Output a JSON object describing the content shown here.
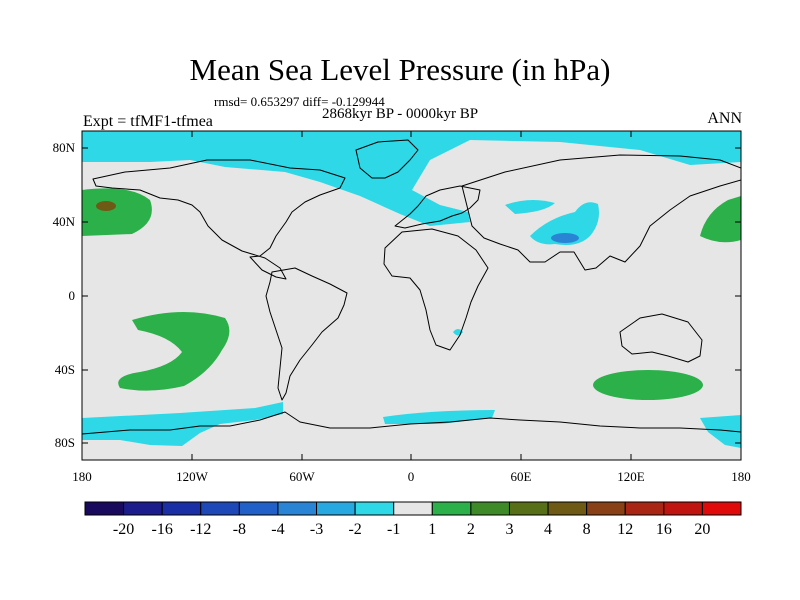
{
  "title": "Mean Sea Level Pressure (in hPa)",
  "stats_line": "rmsd= 0.653297 diff= -0.129944",
  "period": "2868kyr BP - 0000kyr BP",
  "experiment": "Expt = tfMF1-tfmea",
  "season": "ANN",
  "lat_ticks": [
    "80N",
    "40N",
    "0",
    "40S",
    "80S"
  ],
  "lon_ticks": [
    "180",
    "120W",
    "60W",
    "0",
    "60E",
    "120E",
    "180"
  ],
  "colorbar": {
    "labels": [
      "-20",
      "-16",
      "-12",
      "-8",
      "-4",
      "-3",
      "-2",
      "-1",
      "1",
      "2",
      "3",
      "4",
      "8",
      "12",
      "16",
      "20"
    ],
    "colors": [
      "#1a0a5e",
      "#1c1c8c",
      "#1a2ea6",
      "#1e48b8",
      "#2060c8",
      "#2a84d6",
      "#28a8e0",
      "#2ed8e6",
      "#e6e6e6",
      "#2cb04a",
      "#3f8a28",
      "#577018",
      "#6e5a14",
      "#8a4016",
      "#aa2614",
      "#c01410",
      "#e00a0a"
    ]
  }
}
